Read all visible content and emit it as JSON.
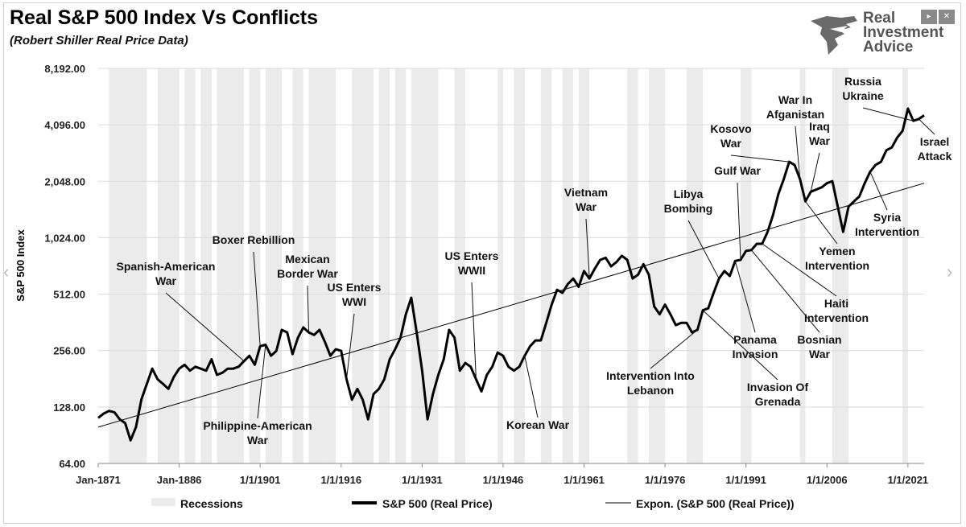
{
  "header": {
    "title": "Real S&P 500 Index Vs Conflicts",
    "subtitle": "(Robert Shiller Real Price Data)",
    "logo_lines": [
      "Real",
      "Investment",
      "Advice"
    ],
    "logo_icon": "eagle-icon"
  },
  "nav": {
    "prev_icon": "chevron-left-icon",
    "next_icon": "chevron-right-icon",
    "prev_glyph": "‹",
    "next_glyph": "›",
    "play_glyph": "▸",
    "close_glyph": "✕"
  },
  "colors": {
    "series": "#000000",
    "trend": "#000000",
    "recession": "#ebebeb",
    "grid": "#d9d9d9"
  },
  "chart_data": {
    "type": "line",
    "title": "Real S&P 500 Index Vs Conflicts",
    "ylabel": "S&P 500 Index",
    "xlabel": "",
    "yscale": "log2",
    "ylim": [
      64,
      8192
    ],
    "xlim": [
      1871,
      2024
    ],
    "y_ticks": [
      64,
      128,
      256,
      512,
      1024,
      2048,
      4096,
      8192
    ],
    "y_tick_labels": [
      "64.00",
      "128.00",
      "256.00",
      "512.00",
      "1,024.00",
      "2,048.00",
      "4,096.00",
      "8,192.00"
    ],
    "x_ticks": [
      1871,
      1886,
      1901,
      1916,
      1931,
      1946,
      1961,
      1976,
      1991,
      2006,
      2021
    ],
    "x_tick_labels": [
      "Jan-1871",
      "Jan-1886",
      "1/1/1901",
      "1/1/1916",
      "1/1/1931",
      "1/1/1946",
      "1/1/1961",
      "1/1/1976",
      "1/1/1991",
      "1/1/2006",
      "1/1/2021"
    ],
    "grid": true,
    "legend_position": "bottom",
    "legend": [
      "Recessions",
      "S&P 500 (Real Price)",
      "Expon. (S&P 500 (Real Price))"
    ],
    "series": [
      {
        "name": "S&P 500 (Real Price)",
        "x": [
          1871,
          1872,
          1873,
          1874,
          1875,
          1876,
          1877,
          1878,
          1879,
          1880,
          1881,
          1882,
          1883,
          1884,
          1885,
          1886,
          1887,
          1888,
          1889,
          1890,
          1891,
          1892,
          1893,
          1894,
          1895,
          1896,
          1897,
          1898,
          1899,
          1900,
          1901,
          1902,
          1903,
          1904,
          1905,
          1906,
          1907,
          1908,
          1909,
          1910,
          1911,
          1912,
          1913,
          1914,
          1915,
          1916,
          1917,
          1918,
          1919,
          1920,
          1921,
          1922,
          1923,
          1924,
          1925,
          1926,
          1927,
          1928,
          1929,
          1930,
          1931,
          1932,
          1933,
          1934,
          1935,
          1936,
          1937,
          1938,
          1939,
          1940,
          1941,
          1942,
          1943,
          1944,
          1945,
          1946,
          1947,
          1948,
          1949,
          1950,
          1951,
          1952,
          1953,
          1954,
          1955,
          1956,
          1957,
          1958,
          1959,
          1960,
          1961,
          1962,
          1963,
          1964,
          1965,
          1966,
          1967,
          1968,
          1969,
          1970,
          1971,
          1972,
          1973,
          1974,
          1975,
          1976,
          1977,
          1978,
          1979,
          1980,
          1981,
          1982,
          1983,
          1984,
          1985,
          1986,
          1987,
          1988,
          1989,
          1990,
          1991,
          1992,
          1993,
          1994,
          1995,
          1996,
          1997,
          1998,
          1999,
          2000,
          2001,
          2002,
          2003,
          2004,
          2005,
          2006,
          2007,
          2008,
          2009,
          2010,
          2011,
          2012,
          2013,
          2014,
          2015,
          2016,
          2017,
          2018,
          2019,
          2020,
          2021,
          2022,
          2023,
          2024
        ],
        "values": [
          112,
          118,
          122,
          120,
          110,
          105,
          85,
          100,
          140,
          170,
          205,
          180,
          170,
          160,
          185,
          205,
          215,
          200,
          210,
          205,
          200,
          230,
          190,
          195,
          205,
          205,
          210,
          225,
          240,
          215,
          270,
          275,
          240,
          255,
          330,
          320,
          245,
          300,
          340,
          320,
          310,
          330,
          285,
          240,
          260,
          255,
          180,
          140,
          160,
          140,
          110,
          150,
          160,
          180,
          230,
          260,
          300,
          400,
          490,
          320,
          200,
          110,
          150,
          190,
          230,
          330,
          300,
          200,
          220,
          210,
          180,
          155,
          190,
          210,
          250,
          240,
          210,
          200,
          210,
          240,
          270,
          290,
          290,
          360,
          450,
          540,
          520,
          580,
          620,
          560,
          680,
          620,
          700,
          780,
          800,
          720,
          760,
          820,
          780,
          620,
          650,
          740,
          650,
          440,
          400,
          450,
          400,
          350,
          360,
          360,
          320,
          330,
          420,
          430,
          520,
          620,
          680,
          640,
          770,
          780,
          870,
          880,
          950,
          950,
          1100,
          1350,
          1750,
          2100,
          2600,
          2500,
          2100,
          1600,
          1800,
          1850,
          1900,
          2000,
          2050,
          1500,
          1100,
          1500,
          1600,
          1700,
          2000,
          2300,
          2500,
          2600,
          3000,
          3100,
          3500,
          3800,
          5000,
          4300,
          4400,
          4600
        ]
      },
      {
        "name": "Expon. (S&P 500 (Real Price))",
        "x": [
          1871,
          2024
        ],
        "values": [
          100,
          2000
        ]
      }
    ],
    "recessions": [
      [
        1873,
        1879
      ],
      [
        1882,
        1885
      ],
      [
        1887,
        1888
      ],
      [
        1890,
        1891
      ],
      [
        1893,
        1894
      ],
      [
        1895,
        1897
      ],
      [
        1899,
        1900
      ],
      [
        1902,
        1904
      ],
      [
        1907,
        1908
      ],
      [
        1910,
        1912
      ],
      [
        1913,
        1914
      ],
      [
        1918,
        1919
      ],
      [
        1920,
        1921
      ],
      [
        1923,
        1924
      ],
      [
        1926,
        1927
      ],
      [
        1929,
        1933
      ],
      [
        1937,
        1938
      ],
      [
        1945,
        1945
      ],
      [
        1948,
        1949
      ],
      [
        1953,
        1954
      ],
      [
        1957,
        1958
      ],
      [
        1960,
        1961
      ],
      [
        1969,
        1970
      ],
      [
        1973,
        1975
      ],
      [
        1980,
        1980
      ],
      [
        1981,
        1982
      ],
      [
        1990,
        1991
      ],
      [
        2001,
        2001
      ],
      [
        2007,
        2009
      ],
      [
        2020,
        2020
      ]
    ],
    "annotations": [
      {
        "label": "Spanish-American\nWar",
        "year": 1898
      },
      {
        "label": "Boxer Rebillion",
        "year": 1901
      },
      {
        "label": "Philippine-American\nWar",
        "year": 1902
      },
      {
        "label": "Mexican\nBorder War",
        "year": 1910
      },
      {
        "label": "US Enters\nWWI",
        "year": 1917
      },
      {
        "label": "US Enters\nWWII",
        "year": 1941
      },
      {
        "label": "Korean War",
        "year": 1950
      },
      {
        "label": "Vietnam\nWar",
        "year": 1962
      },
      {
        "label": "Libya\nBombing",
        "year": 1986
      },
      {
        "label": "Intervention Into\nLebanon",
        "year": 1982
      },
      {
        "label": "Invasion Of\nGrenada",
        "year": 1983
      },
      {
        "label": "Gulf War",
        "year": 1990
      },
      {
        "label": "Panama\nInvasion",
        "year": 1989
      },
      {
        "label": "Bosnian\nWar",
        "year": 1992
      },
      {
        "label": "Haiti\nIntervention",
        "year": 1994
      },
      {
        "label": "Kosovo\nWar",
        "year": 1999
      },
      {
        "label": "War In\nAfganistan",
        "year": 2001
      },
      {
        "label": "Iraq\nWar",
        "year": 2003
      },
      {
        "label": "Yemen\nIntervention",
        "year": 2002
      },
      {
        "label": "Syria\nIntervention",
        "year": 2014
      },
      {
        "label": "Russia\nUkraine",
        "year": 2022
      },
      {
        "label": "Israel\nAttack",
        "year": 2023
      }
    ]
  }
}
